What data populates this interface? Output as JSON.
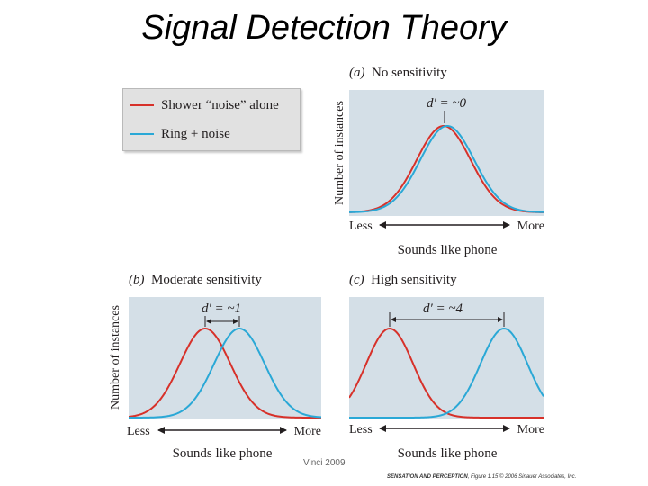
{
  "title": "Signal Detection Theory",
  "legend": {
    "items": [
      {
        "label": "Shower “noise” alone",
        "color": "#d7312a"
      },
      {
        "label": "Ring + noise",
        "color": "#2aa8d6"
      }
    ]
  },
  "panels": [
    {
      "id": "a",
      "letter": "(a)",
      "title": "No sensitivity",
      "dprime": "d′ = ~0",
      "ylabel": "Number of instances",
      "xless": "Less",
      "xmore": "More",
      "xlabel": "Sounds like phone"
    },
    {
      "id": "b",
      "letter": "(b)",
      "title": "Moderate sensitivity",
      "dprime": "d′ = ~1",
      "ylabel": "Number of instances",
      "xless": "Less",
      "xmore": "More",
      "xlabel": "Sounds like phone"
    },
    {
      "id": "c",
      "letter": "(c)",
      "title": "High sensitivity",
      "dprime": "d′ = ~4",
      "xless": "Less",
      "xmore": "More",
      "xlabel": "Sounds like phone"
    }
  ],
  "footer": {
    "credit": "Vinci 2009"
  },
  "figure_credit": {
    "bold": "SENSATION AND PERCEPTION",
    "rest": ", Figure 1.15  © 2006 Sinauer Associates, Inc."
  },
  "colors": {
    "panel_bg": "#d4dfe7",
    "noise": "#d7312a",
    "signal": "#2aa8d6"
  }
}
